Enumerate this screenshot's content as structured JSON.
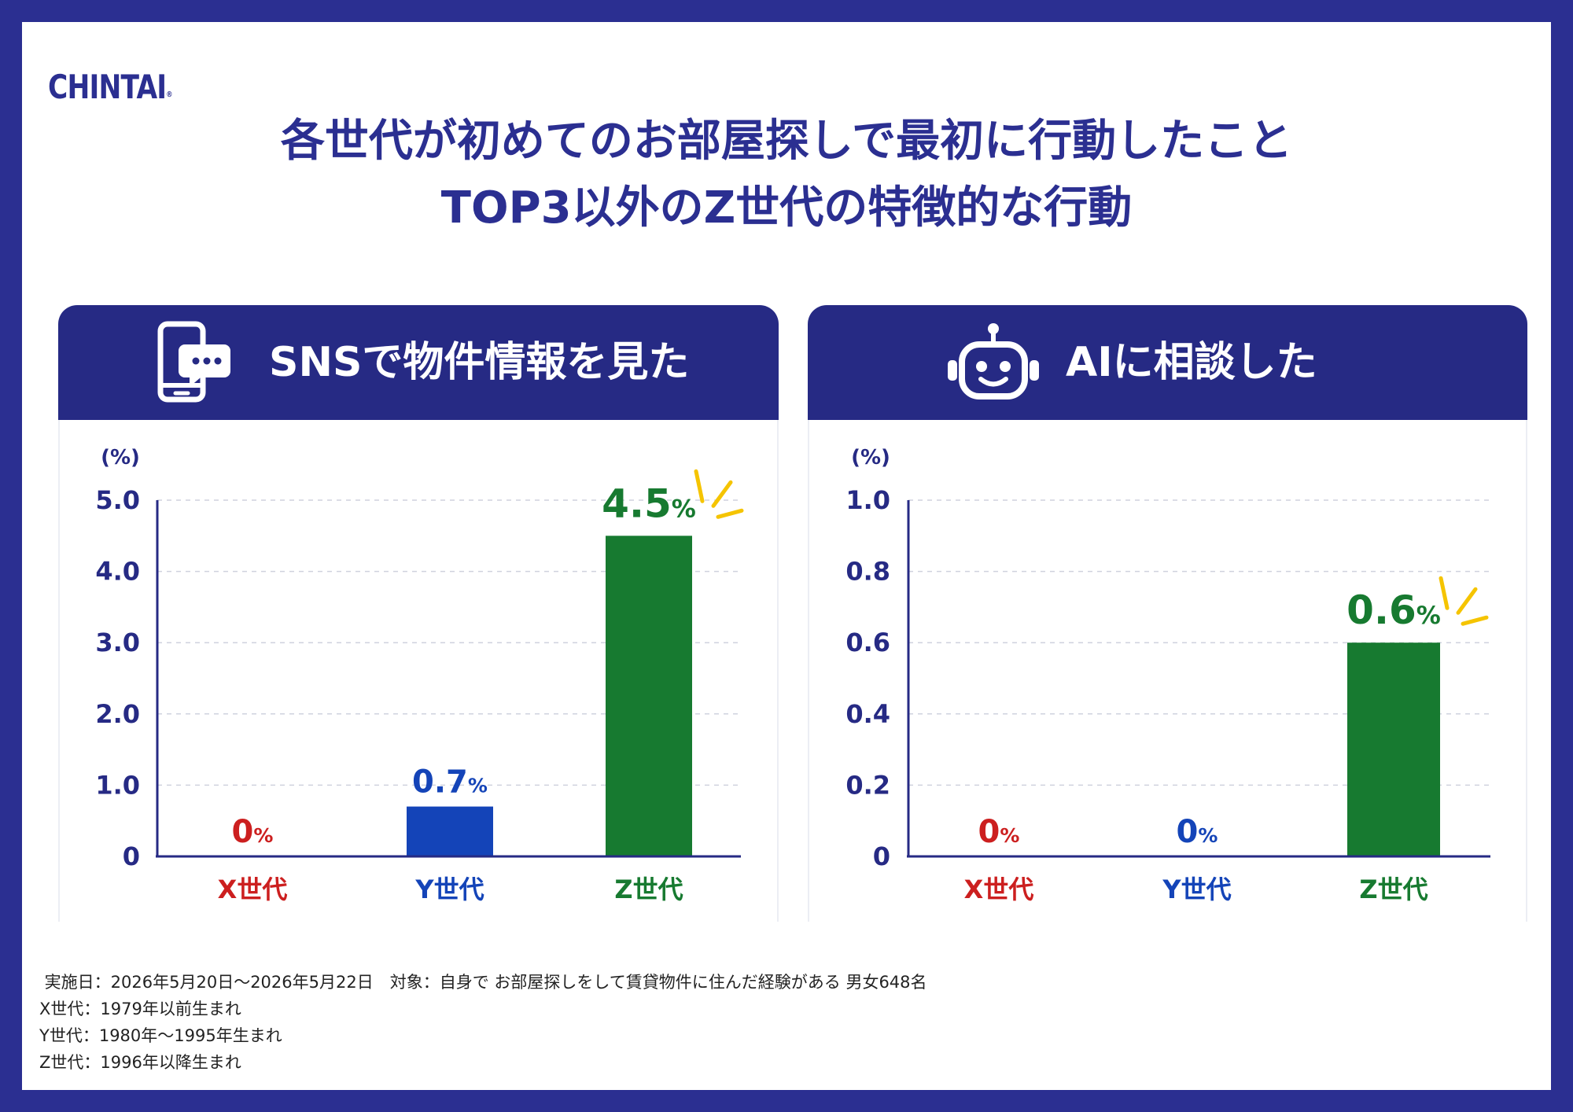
{
  "logo": {
    "text": "CHINTAI",
    "mark": "®"
  },
  "title": {
    "line1": "各世代が初めてのお部屋探しで最初に行動したこと",
    "line2": "TOP3以外のZ世代の特徴的な行動"
  },
  "colors": {
    "frame": "#2b2f91",
    "header": "#262a84",
    "x_gen": "#cc1f1f",
    "y_gen": "#1444b8",
    "z_gen": "#177a30",
    "sparkle": "#f5c400"
  },
  "chart_data": [
    {
      "type": "bar",
      "title": "SNSで物件情報を見た",
      "icon": "smartphone-chat-icon",
      "ylabel": "(%)",
      "ylim": [
        0,
        5.0
      ],
      "yticks": [
        "0",
        "1.0",
        "2.0",
        "3.0",
        "4.0",
        "5.0"
      ],
      "ytick_values": [
        0,
        1,
        2,
        3,
        4,
        5
      ],
      "grid": true,
      "categories": [
        "X世代",
        "Y世代",
        "Z世代"
      ],
      "values": [
        0,
        0.7,
        4.5
      ],
      "labels": [
        {
          "num": "0",
          "unit": "%"
        },
        {
          "num": "0.7",
          "unit": "%"
        },
        {
          "num": "4.5",
          "unit": "%"
        }
      ],
      "highlight": 2
    },
    {
      "type": "bar",
      "title": "AIに相談した",
      "icon": "robot-icon",
      "ylabel": "(%)",
      "ylim": [
        0,
        1.0
      ],
      "yticks": [
        "0",
        "0.2",
        "0.4",
        "0.6",
        "0.8",
        "1.0"
      ],
      "ytick_values": [
        0,
        0.2,
        0.4,
        0.6,
        0.8,
        1.0
      ],
      "grid": true,
      "categories": [
        "X世代",
        "Y世代",
        "Z世代"
      ],
      "values": [
        0,
        0,
        0.6
      ],
      "labels": [
        {
          "num": "0",
          "unit": "%"
        },
        {
          "num": "0",
          "unit": "%"
        },
        {
          "num": "0.6",
          "unit": "%"
        }
      ],
      "highlight": 2
    }
  ],
  "footer": {
    "line1": " 実施日：2026年5月20日〜2026年5月22日　対象：自身で お部屋探しをして賃貸物件に住んだ経験がある 男女648名",
    "line2": "X世代：1979年以前生まれ",
    "line3": "Y世代：1980年〜1995年生まれ",
    "line4": "Z世代：1996年以降生まれ"
  }
}
